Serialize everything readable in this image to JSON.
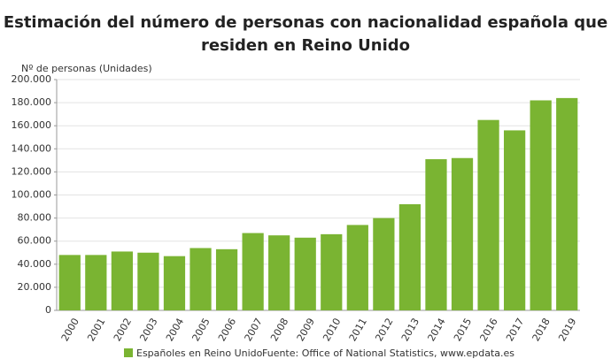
{
  "chart_data": {
    "type": "bar",
    "title": [
      "Estimación del número de personas con nacionalidad española que",
      "residen en Reino Unido"
    ],
    "y_label": "Nº de personas (Unidades)",
    "categories": [
      "2000",
      "2001",
      "2002",
      "2003",
      "2004",
      "2005",
      "2006",
      "2007",
      "2008",
      "2009",
      "2010",
      "2011",
      "2012",
      "2013",
      "2014",
      "2015",
      "2016",
      "2017",
      "2018",
      "2019"
    ],
    "series": [
      {
        "name": "Españoles en Reino Unido",
        "color": "#7ab432",
        "values": [
          48000,
          48000,
          51000,
          50000,
          47000,
          54000,
          53000,
          67000,
          65000,
          63000,
          66000,
          74000,
          80000,
          92000,
          131000,
          132000,
          165000,
          156000,
          182000,
          184000
        ]
      }
    ],
    "ylim": [
      0,
      200000
    ],
    "yticks": [
      0,
      {
        "value": 20000,
        "label": "20.000"
      },
      {
        "value": 40000,
        "label": "40.000"
      },
      {
        "value": 60000,
        "label": "60.000"
      },
      {
        "value": 80000,
        "label": "80.000"
      },
      {
        "value": 100000,
        "label": "100.000"
      },
      {
        "value": 120000,
        "label": "120.000"
      },
      {
        "value": 140000,
        "label": "140.000"
      },
      {
        "value": 160000,
        "label": "160.000"
      },
      {
        "value": 180000,
        "label": "180.000"
      },
      {
        "value": 200000,
        "label": "200.000"
      }
    ],
    "grid": true,
    "source": "Fuente: Office of National Statistics, www.epdata.es"
  }
}
